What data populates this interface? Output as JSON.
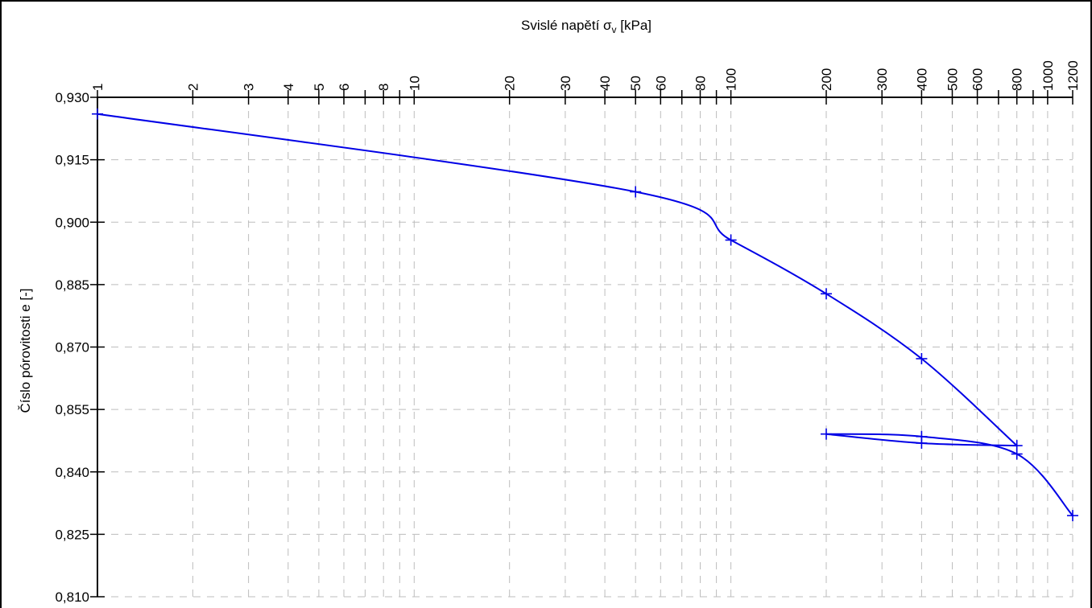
{
  "chart_data": {
    "type": "line",
    "xlabel": "Svislé napětí σ",
    "xlabel_sub": "v",
    "xlabel_unit": " [kPa]",
    "ylabel": "Číslo pórovitosti e [-]",
    "x_scale": "log",
    "x_axis_position": "top",
    "xlim": [
      1,
      1200
    ],
    "ylim": [
      0.81,
      0.93
    ],
    "grid": true,
    "x_tick_values": [
      1,
      2,
      3,
      4,
      5,
      6,
      7,
      8,
      9,
      10,
      20,
      30,
      40,
      50,
      60,
      70,
      80,
      90,
      100,
      200,
      300,
      400,
      500,
      600,
      700,
      800,
      900,
      1000,
      1200
    ],
    "x_tick_labels": [
      {
        "value": 1,
        "label": "1"
      },
      {
        "value": 2,
        "label": "2"
      },
      {
        "value": 3,
        "label": "3"
      },
      {
        "value": 4,
        "label": "4"
      },
      {
        "value": 5,
        "label": "5"
      },
      {
        "value": 6,
        "label": "6"
      },
      {
        "value": 8,
        "label": "8"
      },
      {
        "value": 10,
        "label": "10"
      },
      {
        "value": 20,
        "label": "20"
      },
      {
        "value": 30,
        "label": "30"
      },
      {
        "value": 40,
        "label": "40"
      },
      {
        "value": 50,
        "label": "50"
      },
      {
        "value": 60,
        "label": "60"
      },
      {
        "value": 80,
        "label": "80"
      },
      {
        "value": 100,
        "label": "100"
      },
      {
        "value": 200,
        "label": "200"
      },
      {
        "value": 300,
        "label": "300"
      },
      {
        "value": 400,
        "label": "400"
      },
      {
        "value": 500,
        "label": "500"
      },
      {
        "value": 600,
        "label": "600"
      },
      {
        "value": 800,
        "label": "800"
      },
      {
        "value": 1000,
        "label": "1000"
      },
      {
        "value": 1200,
        "label": "1200"
      }
    ],
    "y_ticks": [
      {
        "value": 0.93,
        "label": "0,930"
      },
      {
        "value": 0.915,
        "label": "0,915"
      },
      {
        "value": 0.9,
        "label": "0,900"
      },
      {
        "value": 0.885,
        "label": "0,885"
      },
      {
        "value": 0.87,
        "label": "0,870"
      },
      {
        "value": 0.855,
        "label": "0,855"
      },
      {
        "value": 0.84,
        "label": "0,840"
      },
      {
        "value": 0.825,
        "label": "0,825"
      },
      {
        "value": 0.81,
        "label": "0,810"
      }
    ],
    "series": [
      {
        "color": "#0000e6",
        "points": [
          {
            "x": 1,
            "y": 0.926
          },
          {
            "x": 50,
            "y": 0.9073
          },
          {
            "x": 100,
            "y": 0.8957
          },
          {
            "x": 200,
            "y": 0.8828
          },
          {
            "x": 400,
            "y": 0.8672
          },
          {
            "x": 800,
            "y": 0.8463
          },
          {
            "x": 400,
            "y": 0.8469
          },
          {
            "x": 200,
            "y": 0.8491
          },
          {
            "x": 400,
            "y": 0.8485
          },
          {
            "x": 800,
            "y": 0.8443
          },
          {
            "x": 1200,
            "y": 0.8295
          }
        ]
      }
    ]
  }
}
